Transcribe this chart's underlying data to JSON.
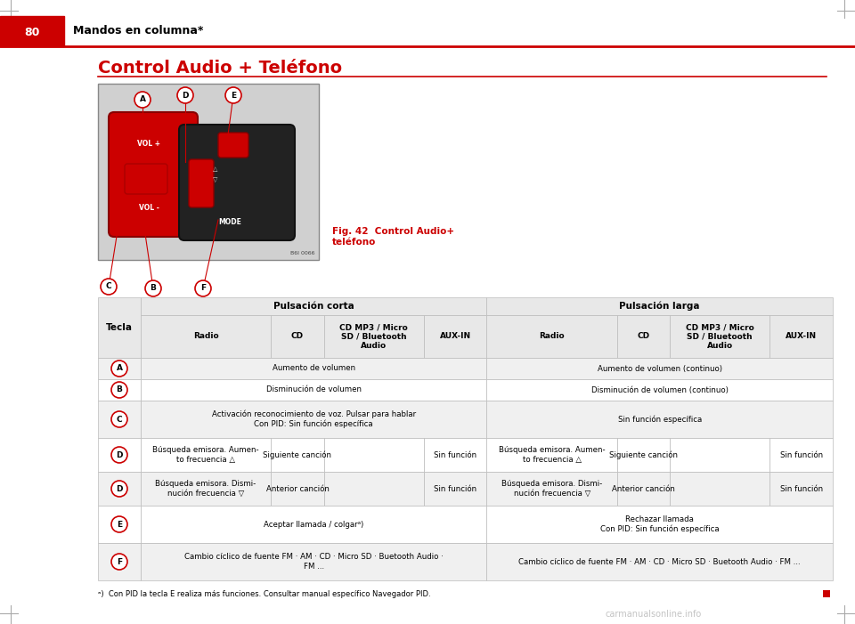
{
  "page_number": "80",
  "header_text": "Mandos en columna*",
  "section_title": "Control Audio + Teléfono",
  "fig_caption": "Fig. 42  Control Audio+\nteléfono",
  "bg_color": "#ffffff",
  "header_red": "#cc0000",
  "title_red": "#cc0000",
  "table_header_gray": "#e8e8e8",
  "table_row_gray": "#f0f0f0",
  "table_row_white": "#ffffff",
  "table_border": "#bbbbbb",
  "col_headers_row1": [
    "Pulsación corta",
    "Pulsación larga"
  ],
  "col_headers_row2": [
    "Radio",
    "CD",
    "CD MP3 / Micro\nSD / Bluetooth\nAudio",
    "AUX-IN",
    "Radio",
    "CD",
    "CD MP3 / Micro\nSD / Bluetooth\nAudio",
    "AUX-IN"
  ],
  "key_col": "Tecla",
  "key_labels": [
    "A",
    "B",
    "C",
    "D",
    "D",
    "E",
    "F"
  ],
  "row_bgs": [
    "gray",
    "white",
    "gray",
    "white",
    "gray",
    "white",
    "gray"
  ],
  "short_spans": [
    true,
    true,
    true,
    false,
    false,
    true,
    true
  ],
  "short_texts": [
    "Aumento de volumen",
    "Disminución de volumen",
    "Activación reconocimiento de voz. Pulsar para hablar\nCon PID: Sin función específica",
    null,
    null,
    "Aceptar llamada / colgarᵃ)",
    "Cambio cíclico de fuente FM · AM · CD · Micro SD · Buetooth Audio ·\nFM ..."
  ],
  "short_cols": [
    null,
    null,
    null,
    [
      "Búsqueda emisora. Aumen-\nto frecuencia △",
      "Siguiente canción",
      "",
      "Sin función"
    ],
    [
      "Búsqueda emisora. Dismi-\nnución frecuencia ▽",
      "Anterior canción",
      "",
      "Sin función"
    ],
    null,
    null
  ],
  "long_spans": [
    true,
    true,
    true,
    false,
    false,
    true,
    true
  ],
  "long_texts": [
    "Aumento de volumen (continuo)",
    "Disminución de volumen (continuo)",
    "Sin función específica",
    null,
    null,
    "Rechazar llamada\nCon PID: Sin función específica",
    "Cambio cíclico de fuente FM · AM · CD · Micro SD · Buetooth Audio · FM ..."
  ],
  "long_cols": [
    null,
    null,
    null,
    [
      "Búsqueda emisora. Aumen-\nto frecuencia △",
      "Siguiente canción",
      "",
      "Sin función"
    ],
    [
      "Búsqueda emisora. Dismi-\nnución frecuencia ▽",
      "Anterior canción",
      "",
      "Sin función"
    ],
    null,
    null
  ],
  "footnote": "ᵃ)  Con PID la tecla E realiza más funciones. Consultar manual específico Navegador PID.",
  "watermark": "carmanualsonline.info"
}
